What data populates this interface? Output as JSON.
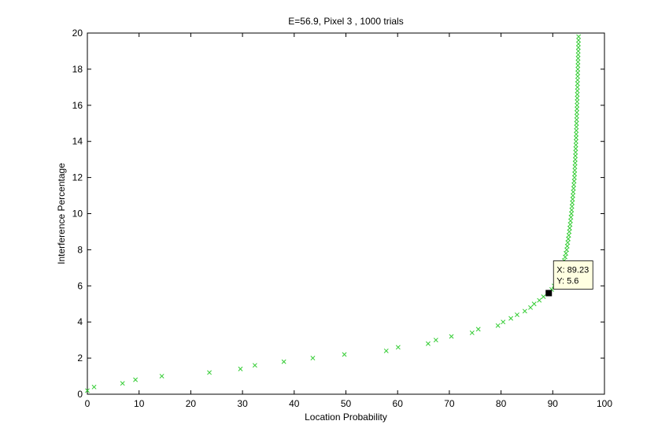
{
  "chart_data": {
    "type": "scatter",
    "title": "E=56.9, Pixel 3 , 1000 trials",
    "xlabel": "Location Probability",
    "ylabel": "Interference Percentage",
    "xlim": [
      0,
      100
    ],
    "ylim": [
      0,
      20
    ],
    "xticks": [
      0,
      10,
      20,
      30,
      40,
      50,
      60,
      70,
      80,
      90,
      100
    ],
    "yticks": [
      0,
      2,
      4,
      6,
      8,
      10,
      12,
      14,
      16,
      18,
      20
    ],
    "grid": false,
    "marker": "x",
    "series_color": "#33cc33",
    "sparse_points": [
      [
        0.0,
        0.2
      ],
      [
        1.3,
        0.4
      ],
      [
        6.8,
        0.6
      ],
      [
        9.3,
        0.8
      ],
      [
        14.4,
        1.0
      ],
      [
        23.6,
        1.2
      ],
      [
        29.6,
        1.4
      ],
      [
        32.4,
        1.6
      ],
      [
        38.0,
        1.8
      ],
      [
        43.6,
        2.0
      ],
      [
        49.7,
        2.2
      ],
      [
        57.8,
        2.4
      ],
      [
        60.1,
        2.6
      ],
      [
        65.9,
        2.8
      ],
      [
        67.4,
        3.0
      ],
      [
        70.4,
        3.2
      ],
      [
        74.4,
        3.4
      ],
      [
        75.6,
        3.6
      ],
      [
        79.4,
        3.8
      ],
      [
        80.4,
        4.0
      ],
      [
        81.9,
        4.2
      ],
      [
        83.1,
        4.4
      ],
      [
        84.6,
        4.6
      ],
      [
        85.7,
        4.8
      ],
      [
        86.4,
        5.0
      ],
      [
        87.4,
        5.2
      ],
      [
        88.2,
        5.4
      ],
      [
        89.23,
        5.6
      ]
    ],
    "dense_curve": {
      "y_start": 5.8,
      "y_end": 19.8,
      "y_step": 0.2,
      "x_at_y": [
        [
          5.8,
          89.8
        ],
        [
          6.2,
          90.7
        ],
        [
          6.6,
          91.3
        ],
        [
          7.0,
          91.8
        ],
        [
          7.6,
          92.4
        ],
        [
          8.0,
          92.7
        ],
        [
          9.0,
          93.2
        ],
        [
          10.0,
          93.6
        ],
        [
          11.0,
          93.9
        ],
        [
          12.0,
          94.2
        ],
        [
          14.0,
          94.5
        ],
        [
          16.0,
          94.7
        ],
        [
          18.0,
          94.85
        ],
        [
          19.8,
          95.0
        ]
      ]
    },
    "datatip": {
      "x_value": 89.23,
      "y_value": 5.6,
      "x_text": "X: 89.23",
      "y_text": "Y: 5.6"
    }
  }
}
